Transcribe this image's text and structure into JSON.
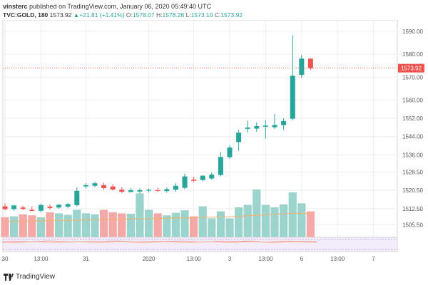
{
  "header": {
    "author": "vinsterc",
    "published_text": "published on TradingView.com, January 06, 2020 05:49:40 UTC",
    "symbol": "TVC:GOLD, 180",
    "last": "1573.92",
    "change_icon": "up-triangle-icon",
    "change": "+21.81 (+1.41%)",
    "o_label": "O:",
    "o_value": "1578.07",
    "h_label": "H:",
    "h_value": "1578.28",
    "l_label": "L:",
    "l_value": "1573.10",
    "c_label": "C:",
    "c_value": "1573.92"
  },
  "footer": {
    "brand": "TradingView",
    "brand_icon": "tradingview-logo-icon"
  },
  "colors": {
    "up": "#26a69a",
    "down": "#ef5350",
    "vol_up": "#9bd3cd",
    "vol_down": "#f4a9a7",
    "ma": "#f6b26b",
    "grid": "#eeeeee",
    "price_line": "#ef5350"
  },
  "chart_data": {
    "type": "candlestick",
    "ylim": [
      1500,
      1595
    ],
    "y_ticks": [
      "1590.00",
      "1580.00",
      "1570.00",
      "1560.00",
      "1552.00",
      "1544.00",
      "1536.00",
      "1528.50",
      "1520.50",
      "1512.50",
      "1505.50"
    ],
    "last_price_label": "1573.92",
    "x_labels": [
      {
        "label": "30",
        "i": 0
      },
      {
        "label": "13:00",
        "i": 4
      },
      {
        "label": "31",
        "i": 9
      },
      {
        "label": "2020",
        "i": 16
      },
      {
        "label": "13:00",
        "i": 21
      },
      {
        "label": "3",
        "i": 25
      },
      {
        "label": "13:00",
        "i": 29
      },
      {
        "label": "6",
        "i": 33
      },
      {
        "label": "13:00",
        "i": 37
      },
      {
        "label": "7",
        "i": 41
      }
    ],
    "candles": [
      {
        "o": 1513.5,
        "h": 1514.8,
        "l": 1511.8,
        "c": 1512.3
      },
      {
        "o": 1512.3,
        "h": 1514.2,
        "l": 1511.6,
        "c": 1513.9
      },
      {
        "o": 1513.0,
        "h": 1513.8,
        "l": 1511.9,
        "c": 1512.4
      },
      {
        "o": 1512.0,
        "h": 1513.5,
        "l": 1511.5,
        "c": 1511.5
      },
      {
        "o": 1511.6,
        "h": 1514.7,
        "l": 1510.9,
        "c": 1514.1
      },
      {
        "o": 1513.4,
        "h": 1514.4,
        "l": 1512.2,
        "c": 1512.8
      },
      {
        "o": 1513.0,
        "h": 1514.6,
        "l": 1512.4,
        "c": 1514.2
      },
      {
        "o": 1513.4,
        "h": 1514.9,
        "l": 1512.7,
        "c": 1514.5
      },
      {
        "o": 1514.0,
        "h": 1521.8,
        "l": 1513.5,
        "c": 1520.3
      },
      {
        "o": 1522.2,
        "h": 1523.6,
        "l": 1521.3,
        "c": 1522.8
      },
      {
        "o": 1522.5,
        "h": 1524.3,
        "l": 1521.9,
        "c": 1523.6
      },
      {
        "o": 1522.8,
        "h": 1523.9,
        "l": 1520.8,
        "c": 1521.5
      },
      {
        "o": 1522.2,
        "h": 1523.2,
        "l": 1520.4,
        "c": 1520.9
      },
      {
        "o": 1520.8,
        "h": 1521.9,
        "l": 1519.4,
        "c": 1519.9
      },
      {
        "o": 1519.8,
        "h": 1521.5,
        "l": 1519.6,
        "c": 1520.6
      },
      {
        "o": 1520.0,
        "h": 1521.4,
        "l": 1519.2,
        "c": 1520.6
      },
      {
        "o": 1520.4,
        "h": 1521.3,
        "l": 1519.6,
        "c": 1520.8
      },
      {
        "o": 1520.6,
        "h": 1521.6,
        "l": 1519.8,
        "c": 1520.5
      },
      {
        "o": 1520.2,
        "h": 1521.8,
        "l": 1519.5,
        "c": 1521.0
      },
      {
        "o": 1520.8,
        "h": 1523.6,
        "l": 1519.9,
        "c": 1522.5
      },
      {
        "o": 1521.6,
        "h": 1527.8,
        "l": 1521.0,
        "c": 1526.6
      },
      {
        "o": 1525.2,
        "h": 1526.4,
        "l": 1524.1,
        "c": 1524.7
      },
      {
        "o": 1525.0,
        "h": 1527.1,
        "l": 1524.5,
        "c": 1526.9
      },
      {
        "o": 1525.7,
        "h": 1528.3,
        "l": 1525.2,
        "c": 1527.4
      },
      {
        "o": 1527.2,
        "h": 1537.3,
        "l": 1526.6,
        "c": 1535.1
      },
      {
        "o": 1535.0,
        "h": 1540.1,
        "l": 1534.2,
        "c": 1539.2
      },
      {
        "o": 1541.6,
        "h": 1546.9,
        "l": 1537.8,
        "c": 1545.7
      },
      {
        "o": 1547.4,
        "h": 1551.0,
        "l": 1545.6,
        "c": 1548.0
      },
      {
        "o": 1547.5,
        "h": 1550.3,
        "l": 1546.1,
        "c": 1548.6
      },
      {
        "o": 1548.3,
        "h": 1551.2,
        "l": 1543.1,
        "c": 1548.8
      },
      {
        "o": 1548.1,
        "h": 1553.9,
        "l": 1547.4,
        "c": 1549.1
      },
      {
        "o": 1549.0,
        "h": 1552.1,
        "l": 1546.9,
        "c": 1550.8
      },
      {
        "o": 1551.8,
        "h": 1588.3,
        "l": 1551.1,
        "c": 1570.6
      },
      {
        "o": 1571.0,
        "h": 1579.6,
        "l": 1569.8,
        "c": 1578.1
      },
      {
        "o": 1578.07,
        "h": 1578.28,
        "l": 1573.1,
        "c": 1573.92
      }
    ],
    "volume": [
      40,
      42,
      46,
      44,
      40,
      50,
      48,
      45,
      55,
      48,
      46,
      55,
      50,
      48,
      47,
      88,
      55,
      48,
      44,
      49,
      54,
      42,
      62,
      38,
      52,
      38,
      60,
      65,
      96,
      65,
      60,
      66,
      90,
      68,
      52
    ],
    "volume_ma": [
      32,
      32,
      32,
      33,
      33,
      34,
      34,
      34,
      34,
      35,
      35,
      36,
      36,
      36,
      37,
      37,
      37,
      38,
      38,
      39,
      39,
      39,
      40,
      40,
      41,
      41,
      42,
      43,
      44,
      45,
      46,
      47,
      48,
      48,
      48
    ]
  }
}
